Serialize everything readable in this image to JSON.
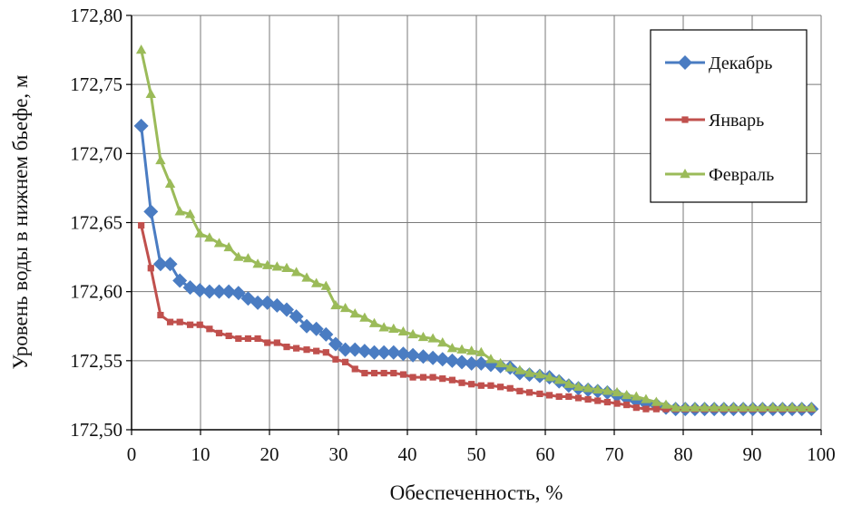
{
  "chart_data": {
    "type": "line",
    "title": "",
    "xlabel": "Обеспеченность, %",
    "ylabel": "Уровень воды в нижнем бьефе, м",
    "xlim": [
      0,
      100
    ],
    "ylim": [
      172.5,
      172.8
    ],
    "x_ticks": [
      0,
      10,
      20,
      30,
      40,
      50,
      60,
      70,
      80,
      90,
      100
    ],
    "y_ticks": [
      172.5,
      172.55,
      172.6,
      172.65,
      172.7,
      172.75,
      172.8
    ],
    "x_tick_labels": [
      "0",
      "10",
      "20",
      "30",
      "40",
      "50",
      "60",
      "70",
      "80",
      "90",
      "100"
    ],
    "y_tick_labels": [
      "172,50",
      "172,55",
      "172,60",
      "172,65",
      "172,70",
      "172,75",
      "172,80"
    ],
    "grid": true,
    "legend_position": "top-right",
    "series": [
      {
        "name": "Декабрь",
        "color": "#4a7cc2",
        "marker": "diamond",
        "x": [
          1.4,
          2.8,
          4.2,
          5.6,
          7.0,
          8.5,
          9.9,
          11.3,
          12.7,
          14.1,
          15.5,
          16.9,
          18.3,
          19.7,
          21.1,
          22.5,
          23.9,
          25.4,
          26.8,
          28.2,
          29.6,
          31.0,
          32.4,
          33.8,
          35.2,
          36.6,
          38.0,
          39.4,
          40.8,
          42.3,
          43.7,
          45.1,
          46.5,
          47.9,
          49.3,
          50.7,
          52.1,
          53.5,
          54.9,
          56.3,
          57.7,
          59.2,
          60.6,
          62.0,
          63.4,
          64.8,
          66.2,
          67.6,
          69.0,
          70.4,
          71.8,
          73.2,
          74.6,
          76.1,
          77.5,
          78.9,
          80.3,
          81.7,
          83.1,
          84.5,
          85.9,
          87.3,
          88.7,
          90.1,
          91.5,
          93.0,
          94.4,
          95.8,
          97.2,
          98.6
        ],
        "values": [
          172.72,
          172.658,
          172.62,
          172.62,
          172.608,
          172.603,
          172.601,
          172.6,
          172.6,
          172.6,
          172.599,
          172.595,
          172.592,
          172.592,
          172.59,
          172.587,
          172.582,
          172.575,
          172.573,
          172.569,
          172.562,
          172.558,
          172.558,
          172.557,
          172.556,
          172.556,
          172.556,
          172.555,
          172.554,
          172.553,
          172.552,
          172.551,
          172.55,
          172.549,
          172.548,
          172.548,
          172.547,
          172.546,
          172.545,
          172.541,
          172.54,
          172.539,
          172.538,
          172.535,
          172.532,
          172.53,
          172.529,
          172.528,
          172.527,
          172.525,
          172.523,
          172.521,
          172.519,
          172.518,
          172.516,
          172.515,
          172.515,
          172.515,
          172.515,
          172.515,
          172.515,
          172.515,
          172.515,
          172.515,
          172.515,
          172.515,
          172.515,
          172.515,
          172.515,
          172.515
        ]
      },
      {
        "name": "Январь",
        "color": "#c0504d",
        "marker": "square",
        "x": [
          1.4,
          2.8,
          4.2,
          5.6,
          7.0,
          8.5,
          9.9,
          11.3,
          12.7,
          14.1,
          15.5,
          16.9,
          18.3,
          19.7,
          21.1,
          22.5,
          23.9,
          25.4,
          26.8,
          28.2,
          29.6,
          31.0,
          32.4,
          33.8,
          35.2,
          36.6,
          38.0,
          39.4,
          40.8,
          42.3,
          43.7,
          45.1,
          46.5,
          47.9,
          49.3,
          50.7,
          52.1,
          53.5,
          54.9,
          56.3,
          57.7,
          59.2,
          60.6,
          62.0,
          63.4,
          64.8,
          66.2,
          67.6,
          69.0,
          70.4,
          71.8,
          73.2,
          74.6,
          76.1,
          77.5,
          78.9,
          80.3,
          81.7,
          83.1,
          84.5,
          85.9,
          87.3,
          88.7,
          90.1,
          91.5,
          93.0,
          94.4,
          95.8,
          97.2,
          98.6
        ],
        "values": [
          172.648,
          172.617,
          172.583,
          172.578,
          172.578,
          172.576,
          172.576,
          172.573,
          172.57,
          172.568,
          172.566,
          172.566,
          172.566,
          172.563,
          172.563,
          172.56,
          172.559,
          172.558,
          172.557,
          172.556,
          172.551,
          172.549,
          172.544,
          172.541,
          172.541,
          172.541,
          172.541,
          172.54,
          172.538,
          172.538,
          172.538,
          172.537,
          172.536,
          172.534,
          172.533,
          172.532,
          172.532,
          172.531,
          172.53,
          172.528,
          172.527,
          172.526,
          172.525,
          172.524,
          172.524,
          172.523,
          172.522,
          172.521,
          172.52,
          172.519,
          172.518,
          172.516,
          172.515,
          172.515,
          172.515,
          172.515,
          172.515,
          172.515,
          172.515,
          172.515,
          172.515,
          172.515,
          172.515,
          172.515,
          172.515,
          172.515,
          172.515,
          172.515,
          172.515,
          172.515
        ]
      },
      {
        "name": "Февраль",
        "color": "#9bbb59",
        "marker": "triangle",
        "x": [
          1.4,
          2.8,
          4.2,
          5.6,
          7.0,
          8.5,
          9.9,
          11.3,
          12.7,
          14.1,
          15.5,
          16.9,
          18.3,
          19.7,
          21.1,
          22.5,
          23.9,
          25.4,
          26.8,
          28.2,
          29.6,
          31.0,
          32.4,
          33.8,
          35.2,
          36.6,
          38.0,
          39.4,
          40.8,
          42.3,
          43.7,
          45.1,
          46.5,
          47.9,
          49.3,
          50.7,
          52.1,
          53.5,
          54.9,
          56.3,
          57.7,
          59.2,
          60.6,
          62.0,
          63.4,
          64.8,
          66.2,
          67.6,
          69.0,
          70.4,
          71.8,
          73.2,
          74.6,
          76.1,
          77.5,
          78.9,
          80.3,
          81.7,
          83.1,
          84.5,
          85.9,
          87.3,
          88.7,
          90.1,
          91.5,
          93.0,
          94.4,
          95.8,
          97.2,
          98.6
        ],
        "values": [
          172.775,
          172.743,
          172.695,
          172.678,
          172.658,
          172.656,
          172.642,
          172.639,
          172.635,
          172.632,
          172.625,
          172.624,
          172.62,
          172.619,
          172.618,
          172.617,
          172.614,
          172.61,
          172.606,
          172.604,
          172.59,
          172.588,
          172.584,
          172.581,
          172.577,
          172.574,
          172.573,
          172.571,
          172.569,
          172.567,
          172.566,
          172.563,
          172.559,
          172.558,
          172.557,
          172.556,
          172.551,
          172.548,
          172.545,
          172.543,
          172.541,
          172.54,
          172.538,
          172.536,
          172.533,
          172.531,
          172.53,
          172.529,
          172.528,
          172.527,
          172.525,
          172.524,
          172.522,
          172.52,
          172.518,
          172.516,
          172.516,
          172.516,
          172.516,
          172.516,
          172.516,
          172.516,
          172.516,
          172.516,
          172.516,
          172.516,
          172.516,
          172.516,
          172.516,
          172.516
        ]
      }
    ]
  }
}
